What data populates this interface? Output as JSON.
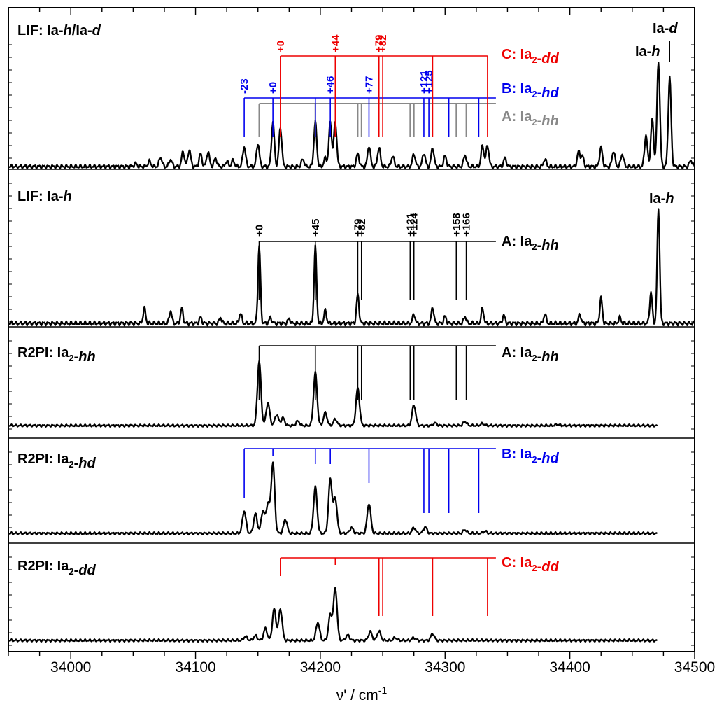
{
  "chart_data": {
    "type": "line",
    "xlabel_main": "ν' / cm",
    "xlabel_exp": "-1",
    "xlim": [
      33950,
      34500
    ],
    "x_ticks": [
      "34000",
      "34100",
      "34200",
      "34300",
      "34400",
      "34500"
    ],
    "grid": false,
    "colors": {
      "A": "#888888",
      "A_black": "#000000",
      "B": "#0000ee",
      "C": "#ee0000",
      "trace": "#000000"
    },
    "panels": [
      {
        "id": "lif-mix",
        "title": {
          "prefix": "LIF: Ia-",
          "i1": "h",
          "mid": "/Ia-",
          "i2": "d"
        },
        "x_start": 33950,
        "x_end": 34500
      },
      {
        "id": "lif-h",
        "title": {
          "prefix": "LIF: Ia-",
          "i1": "h"
        },
        "x_start": 33950,
        "x_end": 34500
      },
      {
        "id": "r2pi-hh",
        "title": {
          "prefix": "R2PI: Ia",
          "sub": "2",
          "mid": "-",
          "i1": "hh"
        },
        "x_start": 33950,
        "x_end": 34470
      },
      {
        "id": "r2pi-hd",
        "title": {
          "prefix": "R2PI: Ia",
          "sub": "2",
          "mid": "-",
          "i1": "hd"
        },
        "x_start": 33950,
        "x_end": 34470
      },
      {
        "id": "r2pi-dd",
        "title": {
          "prefix": "R2PI: Ia",
          "sub": "2",
          "mid": "-",
          "i1": "dd"
        },
        "x_start": 33950,
        "x_end": 34470
      }
    ],
    "monomer_labels": {
      "ia_h": {
        "prefix": "Ia-",
        "italic": "h"
      },
      "ia_d": {
        "prefix": "Ia-",
        "italic": "d"
      }
    },
    "progressions": {
      "A": {
        "label": {
          "prefix": "A: Ia",
          "sub": "2",
          "mid": "-",
          "italic": "hh"
        },
        "origin": 34151,
        "offsets": [
          "+0",
          "+45",
          "+79",
          "+82",
          "+121",
          "+124",
          "+158",
          "+166"
        ],
        "positions": [
          34151,
          34196,
          34230,
          34233,
          34272,
          34275,
          34309,
          34317
        ]
      },
      "B": {
        "label": {
          "prefix": "B: Ia",
          "sub": "2",
          "mid": "-",
          "italic": "hd"
        },
        "origin": 34162,
        "offsets": [
          "-23",
          "+0",
          "+46",
          "+77",
          "+121",
          "+125"
        ],
        "positions": [
          34139,
          34162,
          34208,
          34239,
          34283,
          34287
        ],
        "extra_positions": [
          34196,
          34303,
          34327
        ]
      },
      "C": {
        "label": {
          "prefix": "C: Ia",
          "sub": "2",
          "mid": "-",
          "italic": "dd"
        },
        "origin": 34168,
        "offsets": [
          "+0",
          "+44",
          "+79",
          "+82"
        ],
        "positions": [
          34168,
          34212,
          34247,
          34250
        ],
        "extra_positions": [
          34290,
          34334
        ]
      }
    },
    "peaks": {
      "lif-mix": [
        [
          34052,
          0.03
        ],
        [
          34063,
          0.05
        ],
        [
          34072,
          0.09
        ],
        [
          34080,
          0.07
        ],
        [
          34090,
          0.14
        ],
        [
          34095,
          0.16
        ],
        [
          34104,
          0.12
        ],
        [
          34110,
          0.14
        ],
        [
          34116,
          0.08
        ],
        [
          34125,
          0.05
        ],
        [
          34130,
          0.06
        ],
        [
          34139,
          0.19
        ],
        [
          34150,
          0.22
        ],
        [
          34162,
          0.42
        ],
        [
          34168,
          0.37
        ],
        [
          34186,
          0.07
        ],
        [
          34196,
          0.42
        ],
        [
          34204,
          0.08
        ],
        [
          34208,
          0.42
        ],
        [
          34212,
          0.43
        ],
        [
          34230,
          0.12
        ],
        [
          34239,
          0.2
        ],
        [
          34247,
          0.18
        ],
        [
          34258,
          0.1
        ],
        [
          34275,
          0.12
        ],
        [
          34283,
          0.13
        ],
        [
          34290,
          0.18
        ],
        [
          34300,
          0.1
        ],
        [
          34316,
          0.11
        ],
        [
          34330,
          0.2
        ],
        [
          34334,
          0.2
        ],
        [
          34348,
          0.08
        ],
        [
          34380,
          0.07
        ],
        [
          34407,
          0.14
        ],
        [
          34410,
          0.1
        ],
        [
          34425,
          0.18
        ],
        [
          34435,
          0.15
        ],
        [
          34442,
          0.12
        ],
        [
          34461,
          0.3
        ],
        [
          34466,
          0.45
        ],
        [
          34471,
          1.0
        ],
        [
          34480,
          0.85
        ],
        [
          34497,
          0.06
        ]
      ],
      "lif-h": [
        [
          34059,
          0.13
        ],
        [
          34080,
          0.11
        ],
        [
          34089,
          0.13
        ],
        [
          34104,
          0.05
        ],
        [
          34120,
          0.05
        ],
        [
          34136,
          0.09
        ],
        [
          34151,
          0.67
        ],
        [
          34160,
          0.05
        ],
        [
          34175,
          0.04
        ],
        [
          34196,
          0.66
        ],
        [
          34204,
          0.11
        ],
        [
          34230,
          0.25
        ],
        [
          34275,
          0.08
        ],
        [
          34290,
          0.14
        ],
        [
          34300,
          0.06
        ],
        [
          34316,
          0.06
        ],
        [
          34330,
          0.13
        ],
        [
          34347,
          0.07
        ],
        [
          34380,
          0.08
        ],
        [
          34408,
          0.08
        ],
        [
          34425,
          0.22
        ],
        [
          34440,
          0.05
        ],
        [
          34465,
          0.27
        ],
        [
          34471,
          1.0
        ]
      ],
      "r2pi-hh": [
        [
          34151,
          1.0
        ],
        [
          34158,
          0.35
        ],
        [
          34165,
          0.17
        ],
        [
          34170,
          0.12
        ],
        [
          34182,
          0.07
        ],
        [
          34196,
          0.82
        ],
        [
          34204,
          0.2
        ],
        [
          34212,
          0.1
        ],
        [
          34230,
          0.58
        ],
        [
          34275,
          0.32
        ],
        [
          34292,
          0.04
        ],
        [
          34316,
          0.06
        ],
        [
          34330,
          0.03
        ],
        [
          34390,
          0.02
        ]
      ],
      "r2pi-hd": [
        [
          34139,
          0.32
        ],
        [
          34148,
          0.28
        ],
        [
          34154,
          0.32
        ],
        [
          34158,
          0.42
        ],
        [
          34162,
          1.0
        ],
        [
          34172,
          0.2
        ],
        [
          34196,
          0.66
        ],
        [
          34208,
          0.77
        ],
        [
          34212,
          0.5
        ],
        [
          34225,
          0.08
        ],
        [
          34239,
          0.43
        ],
        [
          34275,
          0.08
        ],
        [
          34284,
          0.09
        ],
        [
          34316,
          0.05
        ],
        [
          34332,
          0.03
        ]
      ],
      "r2pi-dd": [
        [
          34140,
          0.06
        ],
        [
          34148,
          0.07
        ],
        [
          34156,
          0.18
        ],
        [
          34163,
          0.47
        ],
        [
          34168,
          0.47
        ],
        [
          34198,
          0.27
        ],
        [
          34208,
          0.38
        ],
        [
          34212,
          0.78
        ],
        [
          34222,
          0.08
        ],
        [
          34240,
          0.13
        ],
        [
          34247,
          0.14
        ],
        [
          34260,
          0.04
        ],
        [
          34275,
          0.04
        ],
        [
          34290,
          0.1
        ]
      ]
    }
  }
}
